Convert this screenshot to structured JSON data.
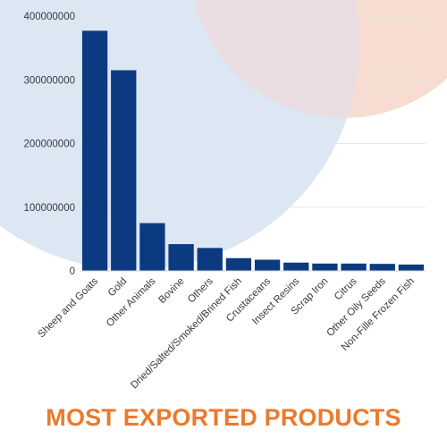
{
  "colors": {
    "bar": "#0b3a80",
    "title": "#ea7a2d",
    "circle_left": "#dde7f4",
    "circle_right": "#f7ddd1",
    "circle_overlap": "#e9dde2",
    "gridline": "#e6e6e6",
    "axis": "#cfcfcf"
  },
  "chart_data": {
    "type": "bar",
    "title": "MOST EXPORTED PRODUCTS",
    "xlabel": "",
    "ylabel": "",
    "ylim": [
      0,
      400000000
    ],
    "yticks": [
      0,
      100000000,
      200000000,
      300000000,
      400000000
    ],
    "ytick_labels": [
      "0",
      "100000000",
      "200000000",
      "300000000",
      "400000000"
    ],
    "grid": true,
    "categories": [
      "Sheep and Goats",
      "Gold",
      "Other Animals",
      "Bovine",
      "Others",
      "Dried/Salted/Smoked/Brined Fish",
      "Crustaceans",
      "Insect Resins",
      "Scrap Iron",
      "Citrus",
      "Other Oily Seeds",
      "Non-Fille Frozen Fish"
    ],
    "values": [
      377000000,
      315000000,
      75000000,
      42000000,
      36000000,
      20000000,
      17500000,
      13000000,
      11500000,
      11500000,
      11000000,
      10000000
    ]
  }
}
